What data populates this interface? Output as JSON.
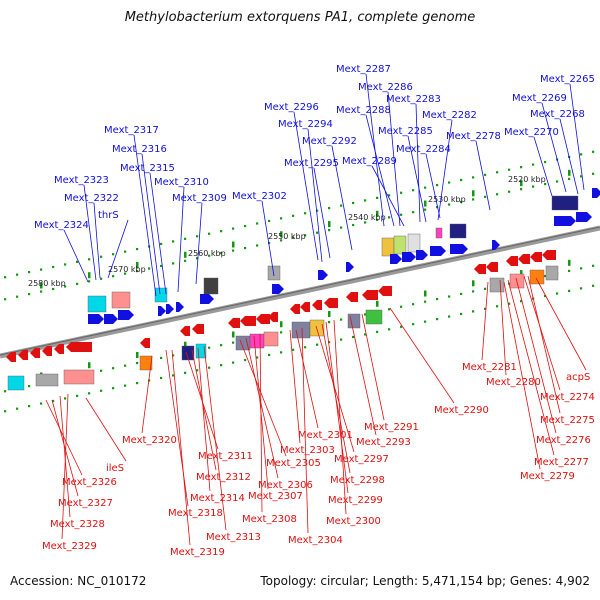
{
  "title": "Methylobacterium extorquens PA1, complete genome",
  "footer": {
    "accession": "Accession: NC_010172",
    "stats": "Topology: circular; Length: 5,471,154 bp; Genes: 4,902"
  },
  "colors": {
    "forward": "#1010e0",
    "reverse": "#e01010",
    "backbone": "#888888",
    "tick": "#119911"
  },
  "scale_labels": [
    "2580 kbp",
    "2570 kbp",
    "2560 kbp",
    "2550 kbp",
    "2540 kbp",
    "2530 kbp",
    "2520 kbp"
  ],
  "top_genes": [
    "Mext_2324",
    "Mext_2323",
    "Mext_2322",
    "thrS",
    "Mext_2317",
    "Mext_2316",
    "Mext_2315",
    "Mext_2310",
    "Mext_2309",
    "Mext_2302",
    "Mext_2296",
    "Mext_2294",
    "Mext_2295",
    "Mext_2292",
    "Mext_2287",
    "Mext_2288",
    "Mext_2289",
    "Mext_2286",
    "Mext_2283",
    "Mext_2285",
    "Mext_2284",
    "Mext_2282",
    "Mext_2278",
    "Mext_2265",
    "Mext_2269",
    "Mext_2270",
    "Mext_2268"
  ],
  "bottom_genes": [
    "Mext_2320",
    "ileS",
    "Mext_2326",
    "Mext_2327",
    "Mext_2328",
    "Mext_2329",
    "Mext_2318",
    "Mext_2319",
    "Mext_2311",
    "Mext_2312",
    "Mext_2314",
    "Mext_2313",
    "Mext_2305",
    "Mext_2306",
    "Mext_2307",
    "Mext_2308",
    "Mext_2301",
    "Mext_2303",
    "Mext_2304",
    "Mext_2297",
    "Mext_2298",
    "Mext_2299",
    "Mext_2300",
    "Mext_2293",
    "Mext_2291",
    "Mext_2290",
    "Mext_2281",
    "Mext_2280",
    "acpS",
    "Mext_2274",
    "Mext_2275",
    "Mext_2276",
    "Mext_2277",
    "Mext_2279"
  ]
}
